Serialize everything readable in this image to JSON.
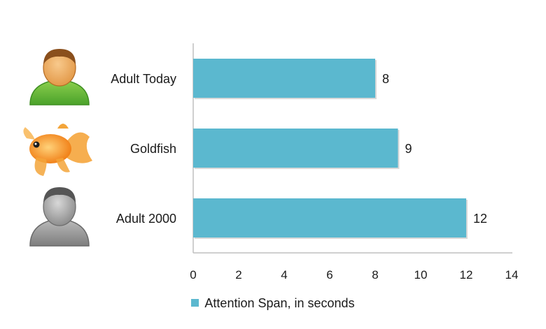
{
  "chart_data": {
    "type": "bar",
    "orientation": "horizontal",
    "categories": [
      "Adult Today",
      "Goldfish",
      "Adult 2000"
    ],
    "icons": [
      "person-green-icon",
      "goldfish-icon",
      "person-gray-icon"
    ],
    "series": [
      {
        "name": "Attention Span, in seconds",
        "values": [
          8,
          9,
          12
        ],
        "color": "#5bb8cf"
      }
    ],
    "xlim": [
      0,
      14
    ],
    "xticks": [
      "0",
      "2",
      "4",
      "6",
      "8",
      "10",
      "12",
      "14"
    ],
    "grid": false,
    "legend_position": "bottom"
  }
}
